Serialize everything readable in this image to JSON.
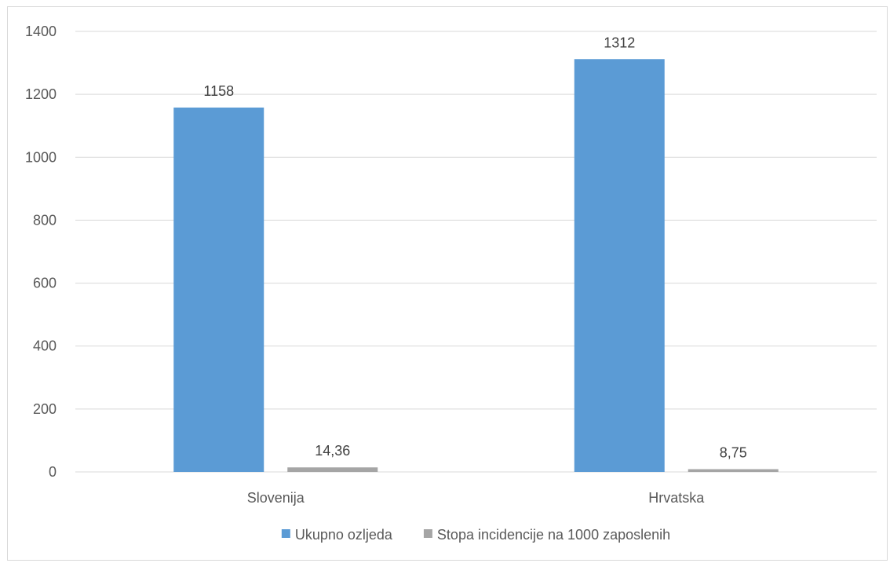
{
  "chart_data": {
    "type": "bar",
    "categories": [
      "Slovenija",
      "Hrvatska"
    ],
    "series": [
      {
        "name": "Ukupno ozljeda",
        "values": [
          1158,
          1312
        ],
        "labels": [
          "1158",
          "1312"
        ],
        "color": "#5b9bd5"
      },
      {
        "name": "Stopa incidencije na 1000 zaposlenih",
        "values": [
          14.36,
          8.75
        ],
        "labels": [
          "14,36",
          "8,75"
        ],
        "color": "#a5a5a5"
      }
    ],
    "ylim": [
      0,
      1400
    ],
    "yticks": [
      0,
      200,
      400,
      600,
      800,
      1000,
      1200,
      1400
    ],
    "ytick_labels": [
      "0",
      "200",
      "400",
      "600",
      "800",
      "1000",
      "1200",
      "1400"
    ],
    "grid": true,
    "legend_position": "bottom",
    "title": "",
    "xlabel": "",
    "ylabel": ""
  }
}
